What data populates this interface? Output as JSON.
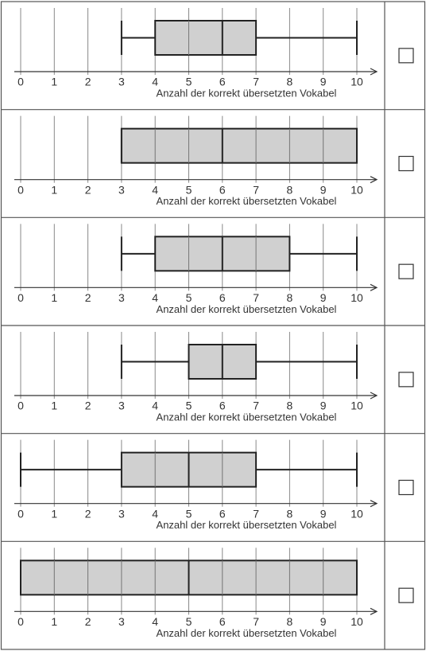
{
  "chart_data": [
    {
      "type": "box",
      "xlabel": "Anzahl der korrekt übersetzten Vokabel",
      "xlim": [
        0,
        10
      ],
      "xticks": [
        0,
        1,
        2,
        3,
        4,
        5,
        6,
        7,
        8,
        9,
        10
      ],
      "grid": true,
      "color": "#c8c8c8",
      "min": 3,
      "q1": 4,
      "median": 6,
      "q3": 7,
      "max": 10
    },
    {
      "type": "box",
      "xlabel": "Anzahl der korrekt übersetzten Vokabel",
      "xlim": [
        0,
        10
      ],
      "xticks": [
        0,
        1,
        2,
        3,
        4,
        5,
        6,
        7,
        8,
        9,
        10
      ],
      "grid": true,
      "color": "#c8c8c8",
      "min": 3,
      "q1": 3,
      "median": 6,
      "q3": 10,
      "max": 10
    },
    {
      "type": "box",
      "xlabel": "Anzahl der korrekt übersetzten Vokabel",
      "xlim": [
        0,
        10
      ],
      "xticks": [
        0,
        1,
        2,
        3,
        4,
        5,
        6,
        7,
        8,
        9,
        10
      ],
      "grid": true,
      "color": "#c8c8c8",
      "min": 3,
      "q1": 4,
      "median": 6,
      "q3": 8,
      "max": 10
    },
    {
      "type": "box",
      "xlabel": "Anzahl der korrekt übersetzten Vokabel",
      "xlim": [
        0,
        10
      ],
      "xticks": [
        0,
        1,
        2,
        3,
        4,
        5,
        6,
        7,
        8,
        9,
        10
      ],
      "grid": true,
      "color": "#c8c8c8",
      "min": 3,
      "q1": 5,
      "median": 6,
      "q3": 7,
      "max": 10
    },
    {
      "type": "box",
      "xlabel": "Anzahl der korrekt übersetzten Vokabel",
      "xlim": [
        0,
        10
      ],
      "xticks": [
        0,
        1,
        2,
        3,
        4,
        5,
        6,
        7,
        8,
        9,
        10
      ],
      "grid": true,
      "color": "#c8c8c8",
      "min": 0,
      "q1": 3,
      "median": 5,
      "q3": 7,
      "max": 10
    },
    {
      "type": "box",
      "xlabel": "Anzahl der korrekt übersetzten Vokabel",
      "xlim": [
        0,
        10
      ],
      "xticks": [
        0,
        1,
        2,
        3,
        4,
        5,
        6,
        7,
        8,
        9,
        10
      ],
      "grid": true,
      "color": "#c8c8c8",
      "min": 0,
      "q1": 0,
      "median": 5,
      "q3": 10,
      "max": 10
    }
  ]
}
